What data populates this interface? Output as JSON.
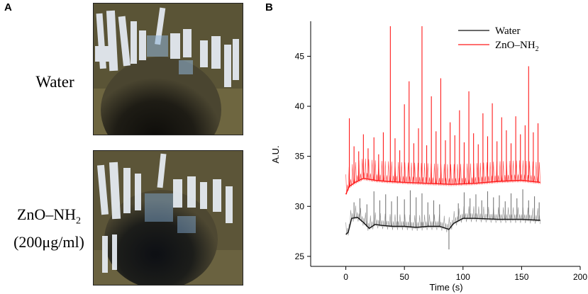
{
  "panels": {
    "a_label": "A",
    "b_label": "B"
  },
  "images": [
    {
      "caption_line1": "Water",
      "caption_line2": ""
    },
    {
      "caption_line1": "ZnO–NH₂",
      "caption_line2": "(200μg/ml)"
    }
  ],
  "chart_data": {
    "type": "line",
    "title": "",
    "xlabel": "Time (s)",
    "ylabel": "A.U.",
    "xlim": [
      -30,
      200
    ],
    "ylim": [
      24,
      48.5
    ],
    "xticks": [
      0,
      50,
      100,
      150,
      200
    ],
    "yticks": [
      25,
      30,
      35,
      40,
      45
    ],
    "grid": false,
    "legend_position": "top-right",
    "series": [
      {
        "name": "Water",
        "color": "#111111",
        "baseline_segments": [
          {
            "x": [
              0,
              2,
              5,
              10,
              15,
              20,
              25,
              30,
              40,
              50,
              60,
              70,
              80,
              88,
              92,
              100,
              110,
              130,
              150,
              166
            ],
            "y": [
              27.2,
              27.4,
              28.8,
              28.9,
              28.4,
              27.8,
              28.2,
              28.1,
              28.0,
              28.0,
              27.9,
              28.0,
              28.0,
              27.7,
              28.3,
              28.8,
              28.8,
              28.7,
              28.7,
              28.6
            ]
          }
        ],
        "spikes": [
          {
            "x": 7,
            "y": 30.4
          },
          {
            "x": 12,
            "y": 30.8
          },
          {
            "x": 18,
            "y": 30.2
          },
          {
            "x": 24,
            "y": 31.5
          },
          {
            "x": 29,
            "y": 30.6
          },
          {
            "x": 34,
            "y": 31.2
          },
          {
            "x": 39,
            "y": 30.5
          },
          {
            "x": 44,
            "y": 31.0
          },
          {
            "x": 50,
            "y": 30.7
          },
          {
            "x": 55,
            "y": 31.6
          },
          {
            "x": 60,
            "y": 30.9
          },
          {
            "x": 65,
            "y": 31.3
          },
          {
            "x": 70,
            "y": 30.4
          },
          {
            "x": 75,
            "y": 30.6
          },
          {
            "x": 80,
            "y": 30.2
          },
          {
            "x": 88,
            "y": 25.7
          },
          {
            "x": 96,
            "y": 30.3
          },
          {
            "x": 101,
            "y": 31.4
          },
          {
            "x": 106,
            "y": 30.8
          },
          {
            "x": 111,
            "y": 31.2
          },
          {
            "x": 116,
            "y": 30.6
          },
          {
            "x": 121,
            "y": 31.5
          },
          {
            "x": 126,
            "y": 30.9
          },
          {
            "x": 131,
            "y": 31.1
          },
          {
            "x": 136,
            "y": 30.5
          },
          {
            "x": 141,
            "y": 31.3
          },
          {
            "x": 146,
            "y": 30.8
          },
          {
            "x": 151,
            "y": 31.7
          },
          {
            "x": 156,
            "y": 30.6
          },
          {
            "x": 161,
            "y": 31.0
          },
          {
            "x": 165,
            "y": 30.4
          }
        ]
      },
      {
        "name": "ZnO–NH₂",
        "color": "#ff1a1a",
        "baseline_segments": [
          {
            "x": [
              0,
              3,
              8,
              15,
              25,
              35,
              50,
              70,
              90,
              110,
              130,
              150,
              166
            ],
            "y": [
              31.2,
              32.0,
              32.4,
              32.8,
              32.6,
              32.5,
              32.4,
              32.3,
              32.2,
              32.3,
              32.5,
              32.6,
              32.4
            ]
          }
        ],
        "spikes": [
          {
            "x": 3,
            "y": 38.8
          },
          {
            "x": 7,
            "y": 36.0
          },
          {
            "x": 11,
            "y": 35.5
          },
          {
            "x": 15,
            "y": 37.2
          },
          {
            "x": 19,
            "y": 35.8
          },
          {
            "x": 24,
            "y": 36.9
          },
          {
            "x": 28,
            "y": 35.2
          },
          {
            "x": 32,
            "y": 37.4
          },
          {
            "x": 38,
            "y": 48.0
          },
          {
            "x": 42,
            "y": 36.8
          },
          {
            "x": 46,
            "y": 35.6
          },
          {
            "x": 50,
            "y": 40.2
          },
          {
            "x": 54,
            "y": 42.5
          },
          {
            "x": 58,
            "y": 36.3
          },
          {
            "x": 62,
            "y": 37.8
          },
          {
            "x": 65,
            "y": 48.0
          },
          {
            "x": 69,
            "y": 36.1
          },
          {
            "x": 73,
            "y": 41.0
          },
          {
            "x": 77,
            "y": 37.5
          },
          {
            "x": 81,
            "y": 42.8
          },
          {
            "x": 85,
            "y": 36.6
          },
          {
            "x": 89,
            "y": 38.4
          },
          {
            "x": 93,
            "y": 37.1
          },
          {
            "x": 97,
            "y": 39.6
          },
          {
            "x": 101,
            "y": 36.4
          },
          {
            "x": 105,
            "y": 41.5
          },
          {
            "x": 109,
            "y": 37.3
          },
          {
            "x": 113,
            "y": 36.2
          },
          {
            "x": 117,
            "y": 39.3
          },
          {
            "x": 121,
            "y": 37.0
          },
          {
            "x": 125,
            "y": 40.3
          },
          {
            "x": 129,
            "y": 36.5
          },
          {
            "x": 133,
            "y": 38.9
          },
          {
            "x": 137,
            "y": 37.6
          },
          {
            "x": 141,
            "y": 36.3
          },
          {
            "x": 145,
            "y": 39.0
          },
          {
            "x": 149,
            "y": 37.2
          },
          {
            "x": 153,
            "y": 38.1
          },
          {
            "x": 156,
            "y": 44.0
          },
          {
            "x": 160,
            "y": 37.4
          },
          {
            "x": 164,
            "y": 38.3
          }
        ]
      }
    ]
  }
}
